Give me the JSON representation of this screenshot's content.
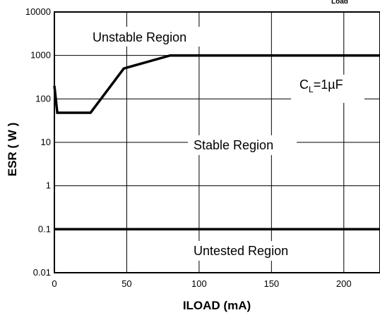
{
  "chart_data": {
    "type": "line",
    "xlabel": "ILOAD (mA)",
    "ylabel": "ESR ( W )",
    "x_ticks": [
      "0",
      "50",
      "100",
      "150",
      "200"
    ],
    "y_ticks": [
      "0.01",
      "0.1",
      "1",
      "10",
      "100",
      "1000",
      "10000"
    ],
    "xlim": [
      0,
      225
    ],
    "ylim": [
      0.01,
      10000
    ],
    "y_scale": "log",
    "grid": true,
    "series": [
      {
        "name": "",
        "points": [
          [
            0,
            200
          ],
          [
            2,
            48
          ],
          [
            25,
            48
          ],
          [
            48,
            500
          ],
          [
            80,
            1000
          ],
          [
            225,
            1000
          ]
        ]
      },
      {
        "name": "",
        "points": [
          [
            0,
            0.1
          ],
          [
            225,
            0.1
          ]
        ]
      }
    ],
    "annotations": {
      "unstable": "Unstable Region",
      "stable": "Stable Region",
      "untested": "Untested Region",
      "cl_main": "C",
      "cl_sub": "L",
      "cl_value": "=1µF",
      "top_fragment": "Load"
    }
  }
}
